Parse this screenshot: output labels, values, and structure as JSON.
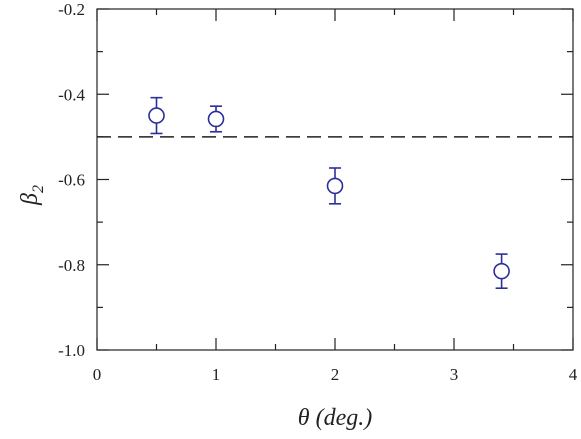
{
  "chart_data": {
    "type": "scatter",
    "xlabel": "θ  (deg.)",
    "ylabel": "β",
    "ylabel_subscript": "2",
    "xlim": [
      0,
      4
    ],
    "ylim": [
      -1.0,
      -0.2
    ],
    "x_ticks": [
      0,
      1,
      2,
      3,
      4
    ],
    "x_tick_labels": [
      "0",
      "1",
      "2",
      "3",
      "4"
    ],
    "y_ticks": [
      -1.0,
      -0.8,
      -0.6,
      -0.4,
      -0.2
    ],
    "y_tick_labels": [
      "-1.0",
      "-0.8",
      "-0.6",
      "-0.4",
      "-0.2"
    ],
    "grid": false,
    "reference_line": {
      "y": -0.5,
      "style": "dashed"
    },
    "series": [
      {
        "marker": "open-circle",
        "color": "#2b2f9a",
        "points": [
          {
            "x": 0.5,
            "y": -0.45,
            "yerr": 0.042
          },
          {
            "x": 1.0,
            "y": -0.458,
            "yerr": 0.03
          },
          {
            "x": 2.0,
            "y": -0.615,
            "yerr": 0.042
          },
          {
            "x": 3.4,
            "y": -0.815,
            "yerr": 0.04
          }
        ]
      }
    ]
  }
}
